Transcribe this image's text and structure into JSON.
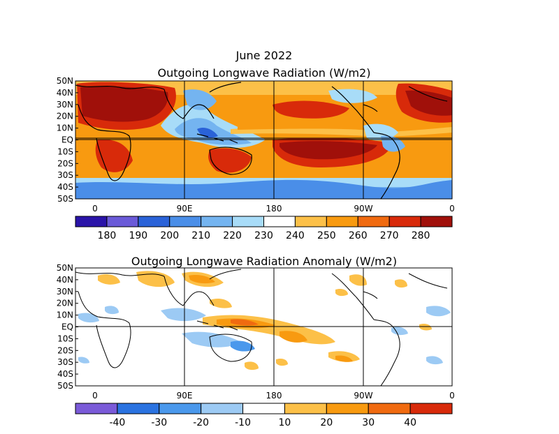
{
  "date_title": "June 2022",
  "chart_data": [
    {
      "type": "heatmap",
      "title": "Outgoing Longwave Radiation (W/m2)",
      "x_ticks": [
        "0",
        "90E",
        "180",
        "90W",
        "0"
      ],
      "y_ticks": [
        "50N",
        "40N",
        "30N",
        "20N",
        "10N",
        "EQ",
        "10S",
        "20S",
        "30S",
        "40S",
        "50S"
      ],
      "lon_range": [
        0,
        360
      ],
      "lat_range": [
        -50,
        50
      ],
      "colorbar": {
        "labels": [
          "180",
          "190",
          "200",
          "210",
          "220",
          "230",
          "240",
          "250",
          "260",
          "270",
          "280"
        ],
        "colors": [
          "#2a14a8",
          "#6a5ad8",
          "#2a62d8",
          "#4a8ee8",
          "#74b4f0",
          "#a8dcf8",
          "#ffffff",
          "#fcc048",
          "#f89a10",
          "#f06a10",
          "#d82a0a",
          "#a0100a"
        ]
      },
      "features": [
        "high OLR over Sahara and Arabia",
        "low OLR over Maritime Continent",
        "ITCZ band of low OLR north of equator in Pacific",
        "low OLR in midlatitudes"
      ]
    },
    {
      "type": "heatmap",
      "title": "Outgoing Longwave Radiation Anomaly (W/m2)",
      "x_ticks": [
        "0",
        "90E",
        "180",
        "90W",
        "0"
      ],
      "y_ticks": [
        "50N",
        "40N",
        "30N",
        "20N",
        "10N",
        "EQ",
        "10S",
        "20S",
        "30S",
        "40S",
        "50S"
      ],
      "lon_range": [
        0,
        360
      ],
      "lat_range": [
        -50,
        50
      ],
      "colorbar": {
        "labels": [
          "-40",
          "-30",
          "-20",
          "-10",
          "10",
          "20",
          "30",
          "40"
        ],
        "colors": [
          "#7a5ad8",
          "#2a72e0",
          "#4a98ec",
          "#9ccaf4",
          "#ffffff",
          "#fcc048",
          "#f89a10",
          "#f06a10",
          "#d82a0a"
        ]
      },
      "features": [
        "positive anomaly along equatorial central Pacific",
        "negative anomaly over Indian Ocean and Maritime Continent",
        "scattered small anomalies elsewhere"
      ]
    }
  ]
}
